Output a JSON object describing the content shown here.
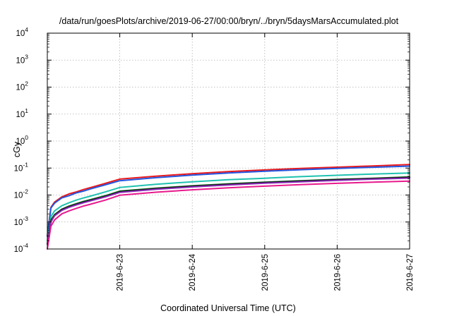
{
  "chart_data": {
    "type": "line",
    "title": "/data/run/goesPlots/archive/2019-06-27/00:00/bryn/../bryn/5daysMarsAccumulated.plot",
    "xlabel": "Coordinated Universal Time (UTC)",
    "ylabel": "cGy",
    "y_scale": "log",
    "ylim": [
      0.0001,
      10000
    ],
    "xlim": [
      "2019-06-22T00:00",
      "2019-06-27T00:00"
    ],
    "x_ticks": [
      "2019-6-23",
      "2019-6-24",
      "2019-6-25",
      "2019-6-26",
      "2019-6-27"
    ],
    "y_ticks": [
      {
        "base": "10",
        "exp": "-4"
      },
      {
        "base": "10",
        "exp": "-3"
      },
      {
        "base": "10",
        "exp": "-2"
      },
      {
        "base": "10",
        "exp": "-1"
      },
      {
        "base": "10",
        "exp": "0"
      },
      {
        "base": "10",
        "exp": "1"
      },
      {
        "base": "10",
        "exp": "2"
      },
      {
        "base": "10",
        "exp": "3"
      },
      {
        "base": "10",
        "exp": "4"
      }
    ],
    "grid": true,
    "legend": "none",
    "x": [
      "2019-06-22T00:00",
      "2019-06-22T01:12",
      "2019-06-22T02:24",
      "2019-06-22T04:48",
      "2019-06-22T07:12",
      "2019-06-22T09:36",
      "2019-06-22T12:00",
      "2019-06-22T14:24",
      "2019-06-22T19:12",
      "2019-06-23T00:00",
      "2019-06-23T12:00",
      "2019-06-24T00:00",
      "2019-06-24T12:00",
      "2019-06-25T00:00",
      "2019-06-25T12:00",
      "2019-06-26T00:00",
      "2019-06-26T12:00",
      "2019-06-27T00:00"
    ],
    "series": [
      {
        "color": "#e8191c",
        "values": [
          0.0003,
          0.0035,
          0.0055,
          0.0085,
          0.011,
          0.013,
          0.016,
          0.019,
          0.027,
          0.039,
          0.05,
          0.062,
          0.074,
          0.085,
          0.097,
          0.108,
          0.12,
          0.135
        ]
      },
      {
        "color": "#2255e0",
        "values": [
          0.0003,
          0.0033,
          0.005,
          0.0078,
          0.0095,
          0.012,
          0.014,
          0.017,
          0.024,
          0.034,
          0.044,
          0.055,
          0.066,
          0.076,
          0.087,
          0.097,
          0.107,
          0.118
        ]
      },
      {
        "color": "#1fc2b0",
        "values": [
          0.0002,
          0.0016,
          0.0026,
          0.004,
          0.0052,
          0.0065,
          0.0078,
          0.0092,
          0.013,
          0.019,
          0.025,
          0.031,
          0.037,
          0.042,
          0.048,
          0.054,
          0.06,
          0.066
        ]
      },
      {
        "color": "#1a7f2a",
        "values": [
          0.00015,
          0.0012,
          0.0019,
          0.003,
          0.0039,
          0.0048,
          0.0058,
          0.0068,
          0.0095,
          0.014,
          0.018,
          0.022,
          0.026,
          0.03,
          0.034,
          0.038,
          0.042,
          0.047
        ]
      },
      {
        "color": "#111111",
        "values": [
          0.00015,
          0.0011,
          0.0018,
          0.0029,
          0.0037,
          0.0046,
          0.0055,
          0.0065,
          0.009,
          0.0133,
          0.0172,
          0.0212,
          0.025,
          0.029,
          0.033,
          0.037,
          0.041,
          0.045
        ]
      },
      {
        "color": "#8a2bb8",
        "values": [
          0.00015,
          0.001,
          0.0017,
          0.0027,
          0.0035,
          0.0043,
          0.0052,
          0.0061,
          0.0085,
          0.0125,
          0.0163,
          0.02,
          0.0237,
          0.0275,
          0.031,
          0.035,
          0.0388,
          0.0425
        ]
      },
      {
        "color": "#e8198c",
        "values": [
          0.0001,
          0.0007,
          0.0012,
          0.002,
          0.0026,
          0.0032,
          0.0039,
          0.0046,
          0.0065,
          0.0098,
          0.0127,
          0.0156,
          0.0185,
          0.0214,
          0.0243,
          0.0272,
          0.0301,
          0.033
        ]
      }
    ]
  }
}
